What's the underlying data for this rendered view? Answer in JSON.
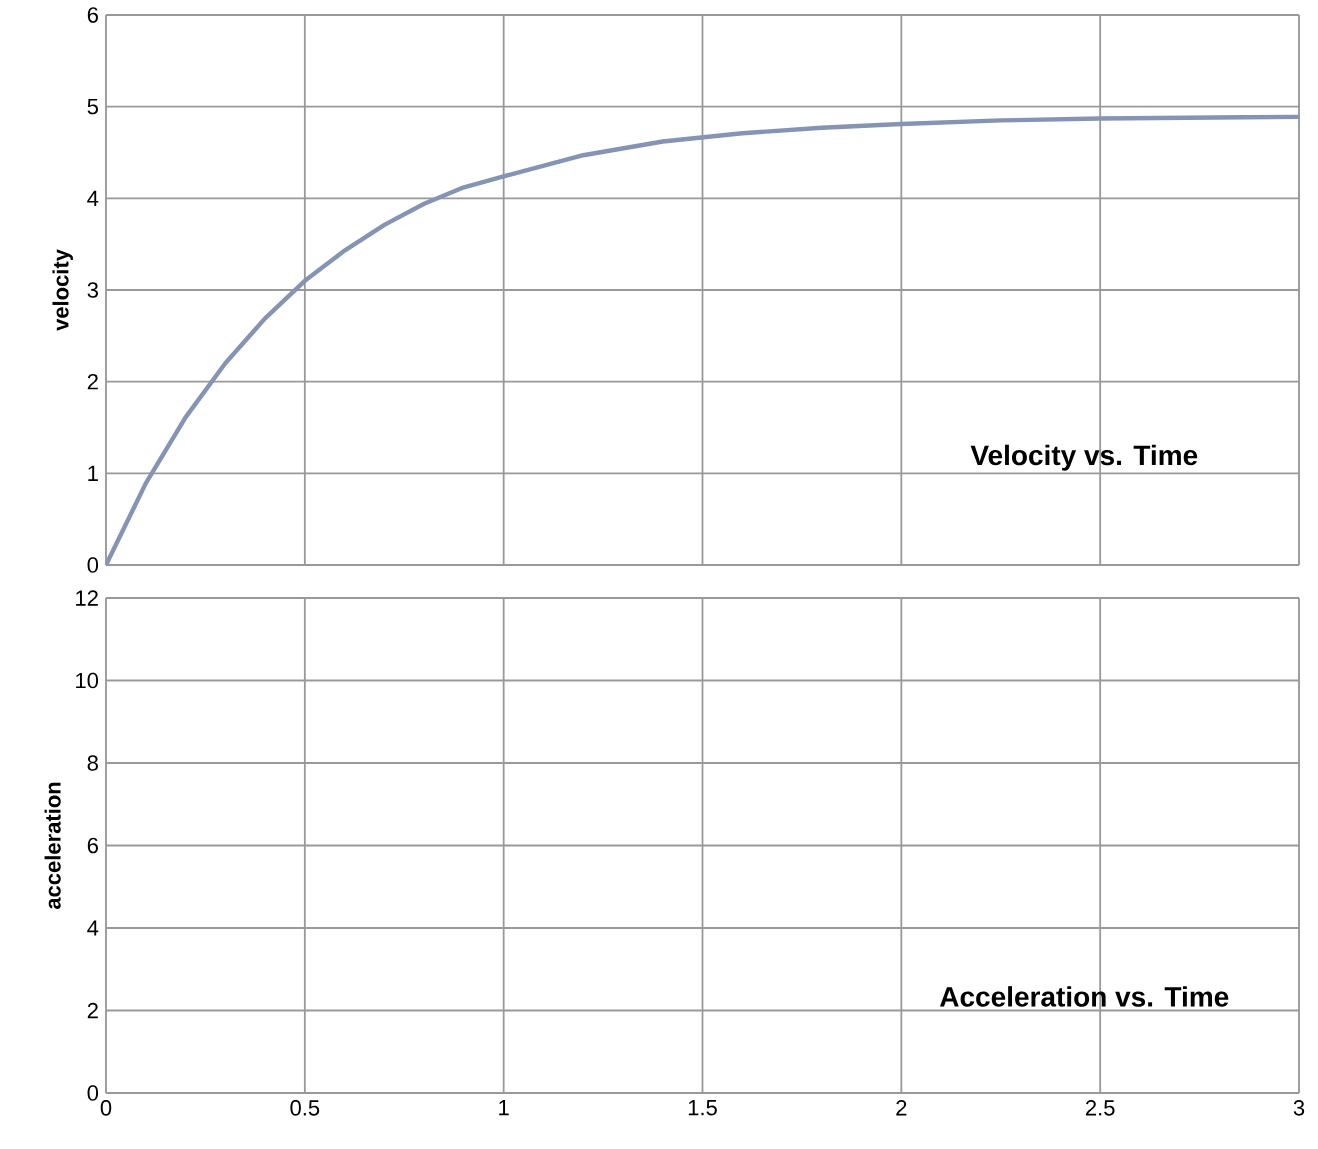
{
  "chart_data": [
    {
      "type": "line",
      "title": "Velocity vs. Time",
      "ylabel": "velocity",
      "xlim": [
        0,
        3
      ],
      "ylim": [
        0,
        6
      ],
      "xticks": [
        0,
        0.5,
        1,
        1.5,
        2,
        2.5,
        3
      ],
      "yticks": [
        0,
        1,
        2,
        3,
        4,
        5,
        6
      ],
      "grid": true,
      "tick_labels": "y",
      "series": [
        {
          "color": "#8593b4",
          "x": [
            0,
            0.1,
            0.2,
            0.3,
            0.4,
            0.5,
            0.6,
            0.7,
            0.8,
            0.9,
            1,
            1.2,
            1.4,
            1.6,
            1.8,
            2,
            2.25,
            2.5,
            2.75,
            3
          ],
          "values": [
            0,
            0.89,
            1.61,
            2.2,
            2.69,
            3.1,
            3.43,
            3.71,
            3.94,
            4.12,
            4.24,
            4.47,
            4.62,
            4.71,
            4.77,
            4.81,
            4.85,
            4.87,
            4.88,
            4.89
          ]
        }
      ]
    },
    {
      "type": "line",
      "title": "Acceleration vs. Time",
      "ylabel": "acceleration",
      "xlim": [
        0,
        3
      ],
      "ylim": [
        0,
        12
      ],
      "xticks": [
        0,
        0.5,
        1,
        1.5,
        2,
        2.5,
        3
      ],
      "yticks": [
        0,
        2,
        4,
        6,
        8,
        10,
        12
      ],
      "grid": true
    }
  ]
}
